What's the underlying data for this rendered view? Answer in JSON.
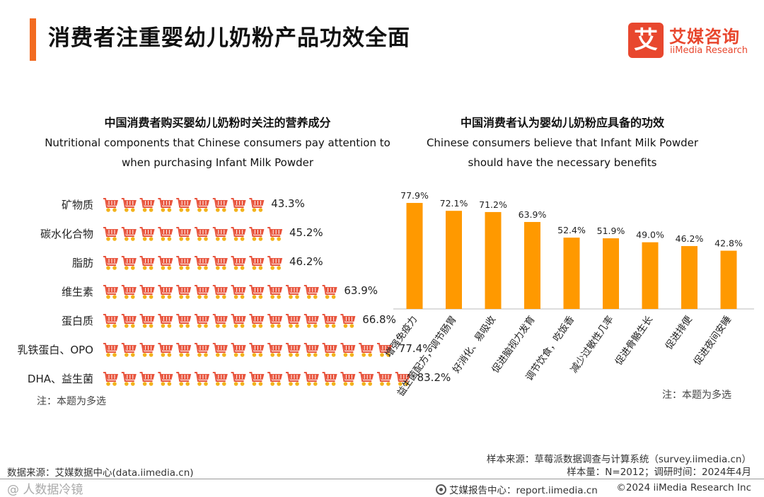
{
  "header": {
    "title": "消费者注重婴幼儿奶粉产品功效全面",
    "accent_color": "#f26b21"
  },
  "logo": {
    "glyph": "艾",
    "name_cn": "艾媒咨询",
    "name_en": "iiMedia Research"
  },
  "chart_data": [
    {
      "type": "bar",
      "orientation": "horizontal",
      "title": "中国消费者购买婴幼儿奶粉时关注的营养成分",
      "subtitle_en_line1": "Nutritional components that Chinese consumers pay attention to",
      "subtitle_en_line2": "when purchasing Infant Milk Powder",
      "categories": [
        "矿物质",
        "碳水化合物",
        "脂肪",
        "维生素",
        "蛋白质",
        "乳铁蛋白、OPO",
        "DHA、益生菌"
      ],
      "values": [
        43.3,
        45.2,
        46.2,
        63.9,
        66.8,
        77.4,
        83.2
      ],
      "value_labels": [
        "43.3%",
        "45.2%",
        "46.2%",
        "63.9%",
        "66.8%",
        "77.4%",
        "83.2%"
      ],
      "unit": "%",
      "mark": "shopping-cart-icon",
      "cart_color": "#e8553e",
      "wheel_color": "#f3b21b"
    },
    {
      "type": "bar",
      "orientation": "vertical",
      "title": "中国消费者认为婴幼儿奶粉应具备的功效",
      "subtitle_en_line1": "Chinese consumers believe that Infant Milk Powder",
      "subtitle_en_line2": "should have the necessary benefits",
      "categories": [
        "增强免疫力",
        "益生菌配方，调节肠胃",
        "好消化、易吸收",
        "促进脑视力发育",
        "调节饮食，吃饭香",
        "减少过敏性几率",
        "促进骨骼生长",
        "促进排便",
        "促进夜间安睡"
      ],
      "values": [
        77.9,
        72.1,
        71.2,
        63.9,
        52.4,
        51.9,
        49.0,
        46.2,
        42.8
      ],
      "value_labels": [
        "77.9%",
        "72.1%",
        "71.2%",
        "63.9%",
        "52.4%",
        "51.9%",
        "49.0%",
        "46.2%",
        "42.8%"
      ],
      "unit": "%",
      "bar_color": "#ff9900"
    }
  ],
  "notes": {
    "left": "注：本题为多选",
    "right": "注：本题为多选"
  },
  "footer": {
    "data_source": "数据来源：艾媒数据中心(data.iimedia.cn)",
    "sample_source": "样本来源：草莓派数据调查与计算系统（survey.iimedia.cn）",
    "sample_info": "样本量：N=2012；调研时间：2024年4月",
    "watermark": "@ 人数据冷镜",
    "report_center": "艾媒报告中心：report.iimedia.cn",
    "copyright": "©2024  iiMedia Research  Inc"
  }
}
